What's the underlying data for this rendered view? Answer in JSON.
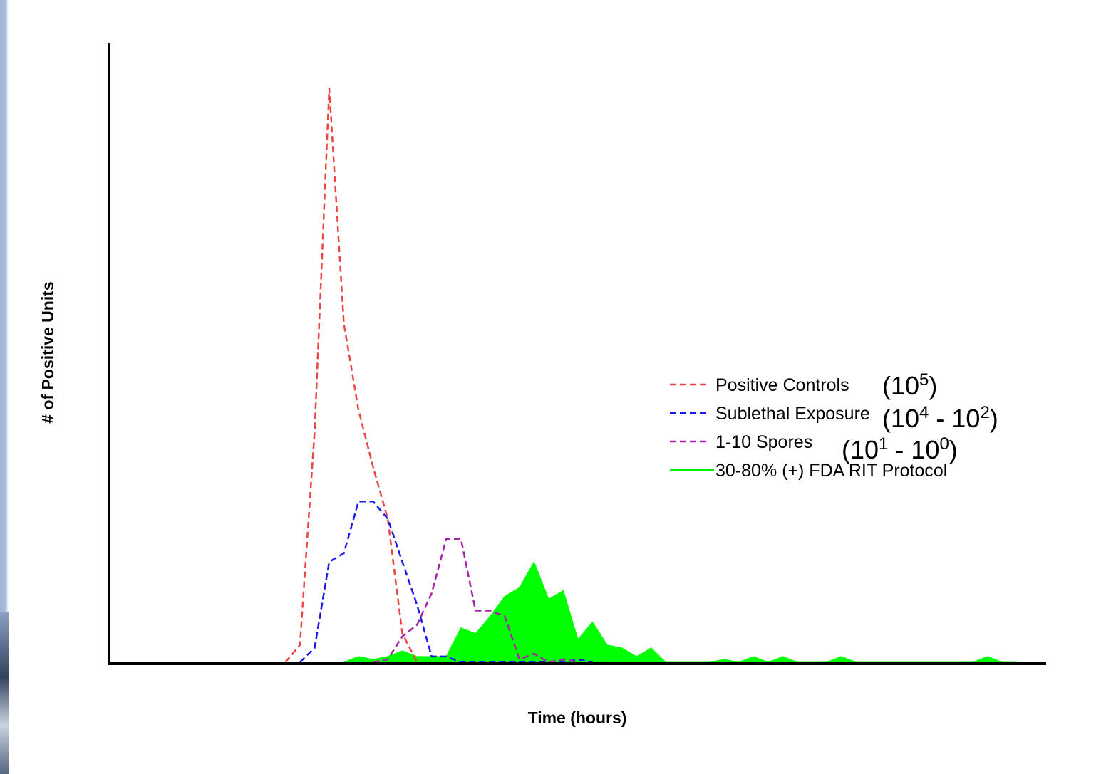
{
  "chart_data": {
    "type": "line",
    "title": "",
    "xlabel": "Time (hours)",
    "ylabel": "# of Positive Units",
    "xlim": [
      0,
      64
    ],
    "ylim": [
      0,
      100
    ],
    "grid": false,
    "legend_position": "right",
    "series": [
      {
        "name": "Positive Controls",
        "name_exponent": "(10^5)",
        "style": "dashed",
        "color": "#ee4444",
        "x": [
          12,
          13,
          14,
          15,
          16,
          17,
          18,
          19,
          20,
          21
        ],
        "y": [
          0,
          3,
          40,
          100,
          59,
          44,
          34,
          25,
          5,
          0
        ]
      },
      {
        "name": "Sublethal Exposure",
        "name_exponent": "(10^4 - 10^2)",
        "style": "dashed",
        "color": "#1a1aee",
        "x": [
          13,
          14,
          15,
          16,
          17,
          18,
          19,
          20,
          21,
          22,
          23,
          24,
          25,
          26,
          27,
          28,
          29,
          30,
          31,
          32,
          33
        ],
        "y": [
          0,
          2.5,
          17.5,
          19,
          28,
          28,
          25,
          17.5,
          10,
          1,
          1,
          0,
          0,
          0,
          0,
          0,
          0,
          0,
          0,
          0.5,
          0
        ]
      },
      {
        "name": "1-10 Spores",
        "name_exponent": "(10^1 - 10^0)",
        "style": "dashed",
        "color": "#aa22aa",
        "x": [
          18,
          19,
          20,
          21,
          22,
          23,
          24,
          25,
          26,
          27,
          28,
          29,
          30,
          31,
          32
        ],
        "y": [
          0,
          0.5,
          4.5,
          6.5,
          12,
          21.5,
          21.5,
          9,
          9,
          8,
          0.5,
          1.5,
          0,
          0.5,
          0
        ]
      },
      {
        "name": "30-80% (+) FDA RIT Protocol",
        "name_exponent": "",
        "style": "filled",
        "color": "#00ff00",
        "x": [
          16,
          17,
          18,
          19,
          20,
          21,
          22,
          23,
          24,
          25,
          26,
          27,
          28,
          29,
          30,
          31,
          32,
          33,
          34,
          35,
          36,
          37,
          38,
          39,
          40,
          41,
          42,
          43,
          44,
          45,
          46,
          47,
          48,
          49,
          50,
          51,
          52,
          53,
          54,
          55,
          56,
          57,
          58,
          59,
          60,
          61,
          62
        ],
        "y": [
          0,
          1,
          0.5,
          1,
          2,
          1,
          1,
          1,
          6,
          5,
          8,
          11.5,
          13,
          17.5,
          11,
          12.5,
          4,
          7,
          3,
          2.5,
          1,
          2.5,
          0,
          0,
          0,
          0,
          0.5,
          0,
          1,
          0,
          1,
          0,
          0,
          0,
          1,
          0,
          0,
          0,
          0,
          0,
          0,
          0,
          0,
          0,
          1,
          0,
          0
        ]
      }
    ]
  }
}
